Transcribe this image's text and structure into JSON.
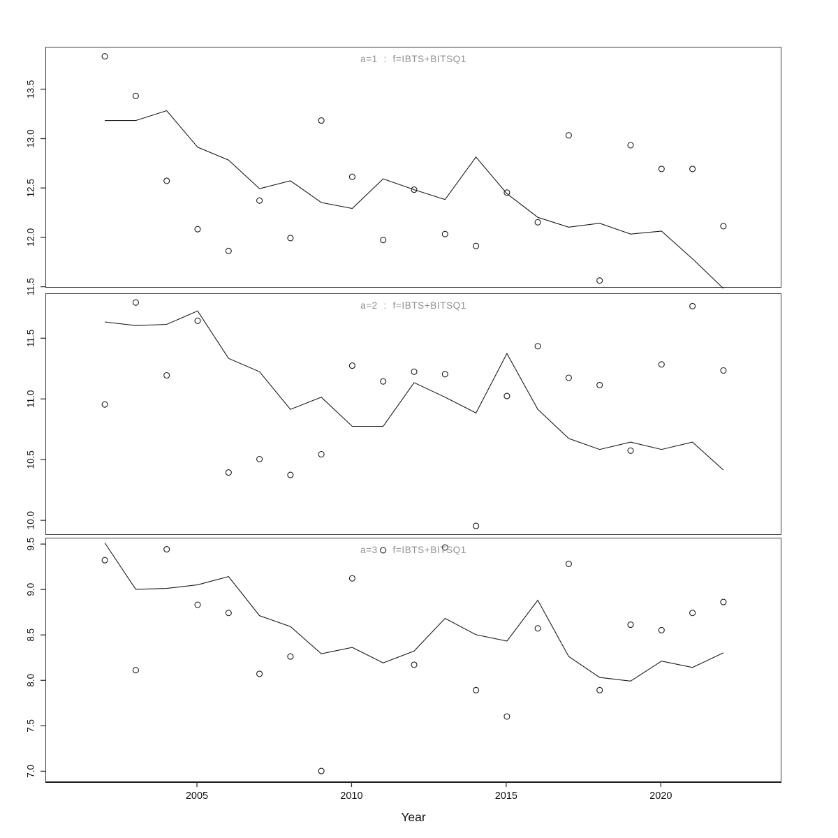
{
  "figure": {
    "xlabel": "Year",
    "x_ticks": [
      2005,
      2010,
      2015,
      2020
    ],
    "colors": {
      "background": "#ffffff",
      "panel_border": "#3c3c3c",
      "data": "#1a1a1a",
      "title": "#8f8f8f",
      "axis_text": "#111111",
      "tick_mark": "#333333"
    }
  },
  "chart_data": [
    {
      "type": "line",
      "title": "a=1  :  f=IBTS+BITSQ1",
      "xlabel": "Year",
      "marker": "open-circle",
      "grid": false,
      "xlim": [
        2000.1,
        2023.9
      ],
      "ylim": [
        11.49,
        13.93
      ],
      "yticks": [
        11.5,
        12.0,
        12.5,
        13.0,
        13.5
      ],
      "x": [
        2002,
        2003,
        2004,
        2005,
        2006,
        2007,
        2008,
        2009,
        2010,
        2011,
        2012,
        2013,
        2014,
        2015,
        2016,
        2017,
        2018,
        2019,
        2020,
        2021,
        2022
      ],
      "series": [
        {
          "name": "line",
          "style": "solid-line",
          "values": [
            13.19,
            13.19,
            13.29,
            12.92,
            12.79,
            12.5,
            12.58,
            12.36,
            12.3,
            12.6,
            12.49,
            12.39,
            12.82,
            12.45,
            12.21,
            12.11,
            12.15,
            12.04,
            12.07,
            11.79,
            11.49
          ]
        },
        {
          "name": "points",
          "style": "open-circle",
          "values": [
            13.84,
            13.44,
            12.58,
            12.09,
            11.87,
            12.38,
            12.0,
            13.19,
            12.62,
            11.98,
            12.49,
            12.04,
            11.92,
            12.46,
            12.16,
            13.04,
            11.57,
            12.94,
            12.7,
            12.7,
            12.12
          ]
        }
      ]
    },
    {
      "type": "line",
      "title": "a=2  :  f=IBTS+BITSQ1",
      "xlabel": "Year",
      "marker": "open-circle",
      "grid": false,
      "xlim": [
        2000.1,
        2023.9
      ],
      "ylim": [
        9.88,
        11.87
      ],
      "yticks": [
        10.0,
        10.5,
        11.0,
        11.5
      ],
      "x": [
        2002,
        2003,
        2004,
        2005,
        2006,
        2007,
        2008,
        2009,
        2010,
        2011,
        2012,
        2013,
        2014,
        2015,
        2016,
        2017,
        2018,
        2019,
        2020,
        2021,
        2022
      ],
      "series": [
        {
          "name": "line",
          "style": "solid-line",
          "values": [
            11.64,
            11.61,
            11.62,
            11.73,
            11.34,
            11.23,
            10.92,
            11.02,
            10.78,
            10.78,
            11.14,
            11.02,
            10.89,
            11.38,
            10.92,
            10.68,
            10.59,
            10.65,
            10.59,
            10.65,
            10.42
          ]
        },
        {
          "name": "points",
          "style": "open-circle",
          "values": [
            10.96,
            11.8,
            11.2,
            11.65,
            10.4,
            10.51,
            10.38,
            10.55,
            11.28,
            11.15,
            11.23,
            11.21,
            9.96,
            11.03,
            11.44,
            11.18,
            11.12,
            10.58,
            11.29,
            11.77,
            11.24
          ]
        }
      ]
    },
    {
      "type": "line",
      "title": "a=3  :  f=IBTS+BITSQ1",
      "xlabel": "Year",
      "marker": "open-circle",
      "grid": false,
      "xlim": [
        2000.1,
        2023.9
      ],
      "ylim": [
        6.88,
        9.57
      ],
      "yticks": [
        7.0,
        7.5,
        8.0,
        8.5,
        9.0,
        9.5
      ],
      "x": [
        2002,
        2003,
        2004,
        2005,
        2006,
        2007,
        2008,
        2009,
        2010,
        2011,
        2012,
        2013,
        2014,
        2015,
        2016,
        2017,
        2018,
        2019,
        2020,
        2021,
        2022
      ],
      "series": [
        {
          "name": "line",
          "style": "solid-line",
          "values": [
            9.52,
            9.01,
            9.02,
            9.06,
            9.15,
            8.72,
            8.6,
            8.3,
            8.37,
            8.2,
            8.33,
            8.69,
            8.51,
            8.44,
            8.89,
            8.27,
            8.04,
            8.0,
            8.22,
            8.15,
            8.31
          ]
        },
        {
          "name": "points",
          "style": "open-circle",
          "values": [
            9.33,
            8.12,
            9.45,
            8.84,
            8.75,
            8.08,
            8.27,
            7.01,
            9.13,
            9.44,
            8.18,
            9.47,
            7.9,
            7.61,
            8.58,
            9.29,
            7.9,
            8.62,
            8.56,
            8.75,
            8.87
          ]
        }
      ]
    }
  ]
}
